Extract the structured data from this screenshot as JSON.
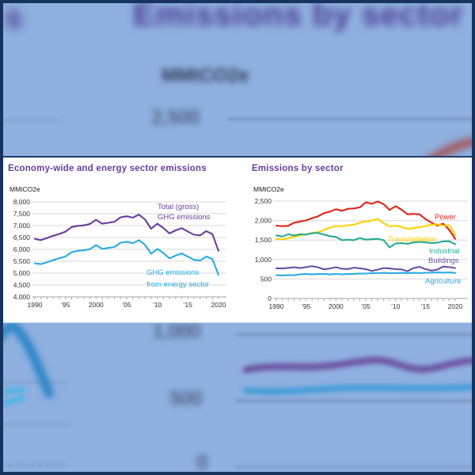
{
  "background": {
    "title": "Emissions by sector",
    "title_fragment": "s",
    "unit_label": "MMtCO2e",
    "ticks": {
      "t2500": "2,500",
      "t1000": "1,000",
      "t500": "500",
      "t0": "0"
    }
  },
  "colors": {
    "border_navy": "#17345f",
    "background_blue": "#8fb0e0",
    "panel_white": "#ffffff",
    "title_purple": "#6a3d9b",
    "power_red": "#e2231a",
    "transportation_yellow": "#ffd100",
    "industrial_teal": "#2aab93",
    "buildings_purple": "#6a51a3",
    "energy_cyan": "#29abe2"
  },
  "chart_data": [
    {
      "type": "line",
      "title": "Economy-wide and energy sector emissions",
      "ylabel": "MMtCO2e",
      "xlabel": "",
      "xlim": [
        1990,
        2020
      ],
      "ylim": [
        4000,
        8000
      ],
      "grid": "horizontal",
      "legend_position": "inline-annotations",
      "x": [
        1990,
        1991,
        1992,
        1993,
        1994,
        1995,
        1996,
        1997,
        1998,
        1999,
        2000,
        2001,
        2002,
        2003,
        2004,
        2005,
        2006,
        2007,
        2008,
        2009,
        2010,
        2011,
        2012,
        2013,
        2014,
        2015,
        2016,
        2017,
        2018,
        2019,
        2020
      ],
      "ytick_values": [
        8000,
        7500,
        7000,
        6500,
        6000,
        5500,
        5000,
        4500,
        4000
      ],
      "ytick_labels": [
        "8,000",
        "7,500",
        "7,000",
        "6,500",
        "6,000",
        "5,500",
        "5,000",
        "4,500",
        "4,000"
      ],
      "xtick_years": [
        1990,
        1995,
        2000,
        2005,
        2010,
        2015,
        2020
      ],
      "xtick_labels": [
        "1990",
        "’95",
        "2000",
        "’05",
        "’10",
        "’15",
        "2020"
      ],
      "series": [
        {
          "name": "Total (gross) GHG emissions",
          "label_lines": [
            "Total (gross)",
            "GHG emissions"
          ],
          "color": "#6a3d9b",
          "values": [
            6442,
            6390,
            6480,
            6570,
            6650,
            6748,
            6940,
            6990,
            7010,
            7070,
            7246,
            7080,
            7120,
            7160,
            7350,
            7392,
            7336,
            7464,
            7260,
            6866,
            7082,
            6900,
            6674,
            6800,
            6892,
            6750,
            6617,
            6589,
            6770,
            6644,
            5940
          ]
        },
        {
          "name": "GHG emissions from energy sector",
          "label_lines": [
            "GHG emissions",
            "from energy sector"
          ],
          "color": "#29abe2",
          "values": [
            5410,
            5380,
            5460,
            5550,
            5630,
            5700,
            5880,
            5940,
            5960,
            6010,
            6180,
            6020,
            6060,
            6100,
            6280,
            6320,
            6260,
            6390,
            6190,
            5820,
            6020,
            5850,
            5620,
            5740,
            5830,
            5690,
            5560,
            5530,
            5700,
            5590,
            4930
          ]
        }
      ]
    },
    {
      "type": "line",
      "title": "Emissions by sector",
      "ylabel": "MMtCO2e",
      "xlabel": "",
      "xlim": [
        1990,
        2020
      ],
      "ylim": [
        0,
        2500
      ],
      "grid": "horizontal",
      "legend_position": "inline-annotations",
      "x": [
        1990,
        1991,
        1992,
        1993,
        1994,
        1995,
        1996,
        1997,
        1998,
        1999,
        2000,
        2001,
        2002,
        2003,
        2004,
        2005,
        2006,
        2007,
        2008,
        2009,
        2010,
        2011,
        2012,
        2013,
        2014,
        2015,
        2016,
        2017,
        2018,
        2019,
        2020
      ],
      "ytick_values": [
        2500,
        2000,
        1500,
        1000,
        500,
        0
      ],
      "ytick_labels": [
        "2,500",
        "2,000",
        "1,500",
        "1,000",
        "500",
        "0"
      ],
      "xtick_years": [
        1990,
        1995,
        2000,
        2005,
        2010,
        2015,
        2020
      ],
      "xtick_labels": [
        "1990",
        "’95",
        "2000",
        "’05",
        "’10",
        "’15",
        "2020"
      ],
      "series": [
        {
          "name": "Power",
          "label_lines": [
            "Power"
          ],
          "color": "#e2231a",
          "values": [
            1870,
            1855,
            1865,
            1945,
            1975,
            2005,
            2060,
            2110,
            2190,
            2230,
            2290,
            2250,
            2300,
            2310,
            2340,
            2470,
            2430,
            2490,
            2420,
            2270,
            2370,
            2280,
            2160,
            2170,
            2160,
            2040,
            1950,
            1870,
            1920,
            1760,
            1530
          ]
        },
        {
          "name": "Transportation",
          "label_lines": [
            "Transportation"
          ],
          "color": "#ffd100",
          "values": [
            1530,
            1515,
            1550,
            1580,
            1620,
            1645,
            1685,
            1700,
            1760,
            1820,
            1860,
            1850,
            1880,
            1890,
            1950,
            1975,
            2000,
            2040,
            1930,
            1850,
            1870,
            1840,
            1790,
            1800,
            1830,
            1860,
            1895,
            1905,
            1870,
            1880,
            1620
          ]
        },
        {
          "name": "Industrial",
          "label_lines": [
            "Industrial"
          ],
          "color": "#2aab93",
          "values": [
            1620,
            1590,
            1650,
            1615,
            1650,
            1640,
            1675,
            1680,
            1640,
            1600,
            1580,
            1495,
            1510,
            1495,
            1550,
            1510,
            1520,
            1530,
            1495,
            1310,
            1410,
            1420,
            1400,
            1440,
            1455,
            1440,
            1425,
            1430,
            1465,
            1470,
            1390
          ]
        },
        {
          "name": "Buildings",
          "label_lines": [
            "Buildings"
          ],
          "color": "#6a51a3",
          "values": [
            775,
            770,
            785,
            800,
            780,
            805,
            830,
            800,
            745,
            770,
            800,
            765,
            755,
            790,
            775,
            755,
            705,
            740,
            780,
            770,
            755,
            745,
            700,
            780,
            810,
            755,
            715,
            740,
            820,
            805,
            780
          ]
        },
        {
          "name": "Agriculture",
          "label_lines": [
            "Agriculture"
          ],
          "color": "#29abe2",
          "values": [
            600,
            590,
            600,
            595,
            620,
            628,
            618,
            628,
            630,
            618,
            628,
            620,
            628,
            632,
            638,
            640,
            648,
            650,
            658,
            648,
            650,
            658,
            648,
            658,
            650,
            660,
            662,
            668,
            662,
            668,
            655
          ]
        }
      ]
    }
  ]
}
